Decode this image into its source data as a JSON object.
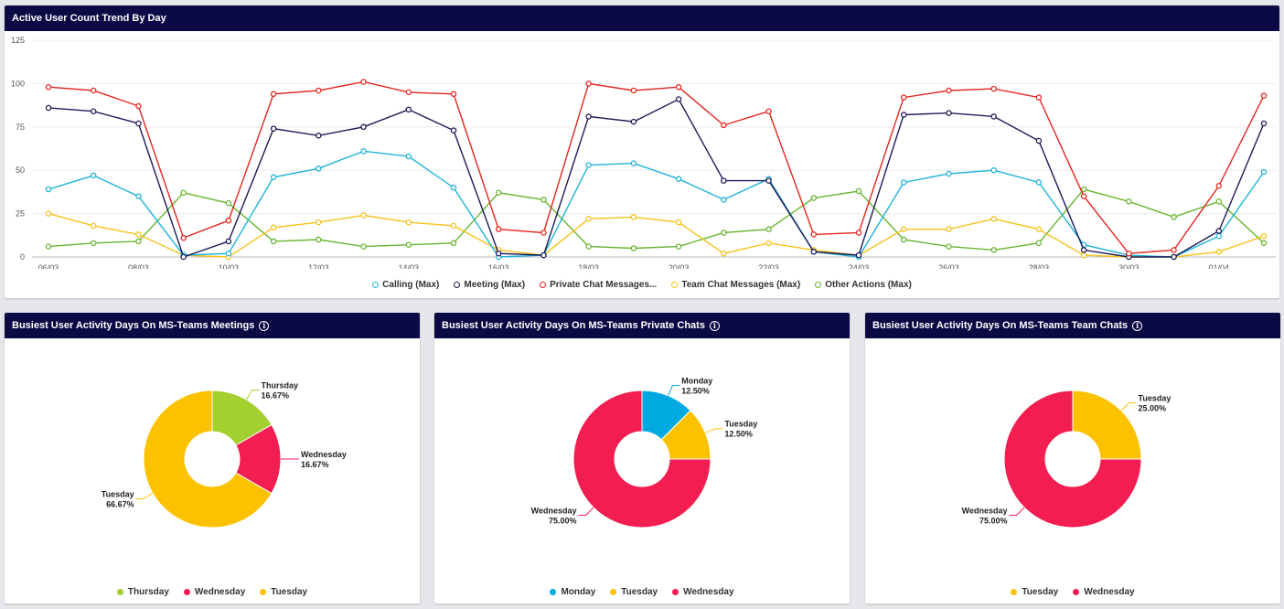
{
  "colors": {
    "header_bg": "#0b0a45",
    "calling": "#1fb3d8",
    "meeting": "#1e1a57",
    "private_chat": "#e3261f",
    "team_chat": "#f6c21c",
    "other": "#67b531",
    "thursday": "#a3cf2f",
    "wednesday": "#f21d50",
    "tuesday": "#fcc200",
    "monday": "#00a9e0"
  },
  "trend": {
    "title": "Active User Count Trend By Day",
    "chart_data": {
      "type": "line",
      "ylim": [
        0,
        125
      ],
      "yticks": [
        "0",
        "25",
        "50",
        "75",
        "100",
        "125"
      ],
      "x": [
        "06/03",
        "07/03",
        "08/03",
        "09/03",
        "10/03",
        "11/03",
        "12/03",
        "13/03",
        "14/03",
        "15/03",
        "16/03",
        "17/03",
        "18/03",
        "19/03",
        "20/03",
        "21/03",
        "22/03",
        "23/03",
        "24/03",
        "25/03",
        "26/03",
        "27/03",
        "28/03",
        "29/03",
        "30/03",
        "31/03",
        "01/04",
        "02/04"
      ],
      "xtick_labels": [
        "06/03",
        "",
        "08/03",
        "",
        "10/03",
        "",
        "12/03",
        "",
        "14/03",
        "",
        "16/03",
        "",
        "18/03",
        "",
        "20/03",
        "",
        "22/03",
        "",
        "24/03",
        "",
        "26/03",
        "",
        "28/03",
        "",
        "30/03",
        "",
        "01/04",
        ""
      ],
      "series": [
        {
          "name": "Calling (Max)",
          "key": "calling",
          "values": [
            39,
            47,
            35,
            1,
            2,
            46,
            51,
            61,
            58,
            40,
            0,
            1,
            53,
            54,
            45,
            33,
            45,
            3,
            0,
            43,
            48,
            50,
            43,
            7,
            1,
            0,
            12,
            49
          ]
        },
        {
          "name": "Meeting (Max)",
          "key": "meeting",
          "values": [
            86,
            84,
            77,
            0,
            9,
            74,
            70,
            75,
            85,
            73,
            2,
            1,
            81,
            78,
            91,
            44,
            44,
            3,
            1,
            82,
            83,
            81,
            67,
            4,
            0,
            0,
            15,
            77
          ]
        },
        {
          "name": "Private Chat Messages...",
          "key": "private_chat",
          "values": [
            98,
            96,
            87,
            11,
            21,
            94,
            96,
            101,
            95,
            94,
            16,
            14,
            100,
            96,
            98,
            76,
            84,
            13,
            14,
            92,
            96,
            97,
            92,
            35,
            2,
            4,
            41,
            93
          ]
        },
        {
          "name": "Team Chat Messages (Max)",
          "key": "team_chat",
          "values": [
            25,
            18,
            13,
            1,
            0,
            17,
            20,
            24,
            20,
            18,
            4,
            1,
            22,
            23,
            20,
            2,
            8,
            4,
            1,
            16,
            16,
            22,
            16,
            1,
            0,
            0,
            3,
            12
          ]
        },
        {
          "name": "Other Actions (Max)",
          "key": "other",
          "values": [
            6,
            8,
            9,
            37,
            31,
            9,
            10,
            6,
            7,
            8,
            37,
            33,
            6,
            5,
            6,
            14,
            16,
            34,
            38,
            10,
            6,
            4,
            8,
            39,
            32,
            23,
            32,
            8
          ]
        }
      ]
    }
  },
  "meetings": {
    "title": "Busiest User Activity Days On MS-Teams Meetings",
    "chart_data": {
      "type": "pie",
      "slices": [
        {
          "name": "Thursday",
          "label": "Thursday",
          "pct": "16.67%",
          "value": 16.67,
          "key": "thursday"
        },
        {
          "name": "Wednesday",
          "label": "Wednesday",
          "pct": "16.67%",
          "value": 16.67,
          "key": "wednesday"
        },
        {
          "name": "Tuesday",
          "label": "Tuesday",
          "pct": "66.67%",
          "value": 66.67,
          "key": "tuesday"
        }
      ]
    },
    "legend": [
      {
        "label": "Thursday",
        "key": "thursday"
      },
      {
        "label": "Wednesday",
        "key": "wednesday"
      },
      {
        "label": "Tuesday",
        "key": "tuesday"
      }
    ]
  },
  "private_chats": {
    "title": "Busiest User Activity Days On MS-Teams Private Chats",
    "chart_data": {
      "type": "pie",
      "slices": [
        {
          "name": "Monday",
          "label": "Monday",
          "pct": "12.50%",
          "value": 12.5,
          "key": "monday"
        },
        {
          "name": "Tuesday",
          "label": "Tuesday",
          "pct": "12.50%",
          "value": 12.5,
          "key": "tuesday"
        },
        {
          "name": "Wednesday",
          "label": "Wednesday",
          "pct": "75.00%",
          "value": 75,
          "key": "wednesday"
        }
      ]
    },
    "legend": [
      {
        "label": "Monday",
        "key": "monday"
      },
      {
        "label": "Tuesday",
        "key": "tuesday"
      },
      {
        "label": "Wednesday",
        "key": "wednesday"
      }
    ]
  },
  "team_chats": {
    "title": "Busiest User Activity Days On MS-Teams Team Chats",
    "chart_data": {
      "type": "pie",
      "slices": [
        {
          "name": "Tuesday",
          "label": "Tuesday",
          "pct": "25.00%",
          "value": 25,
          "key": "tuesday"
        },
        {
          "name": "Wednesday",
          "label": "Wednesday",
          "pct": "75.00%",
          "value": 75,
          "key": "wednesday"
        }
      ]
    },
    "legend": [
      {
        "label": "Tuesday",
        "key": "tuesday"
      },
      {
        "label": "Wednesday",
        "key": "wednesday"
      }
    ]
  }
}
